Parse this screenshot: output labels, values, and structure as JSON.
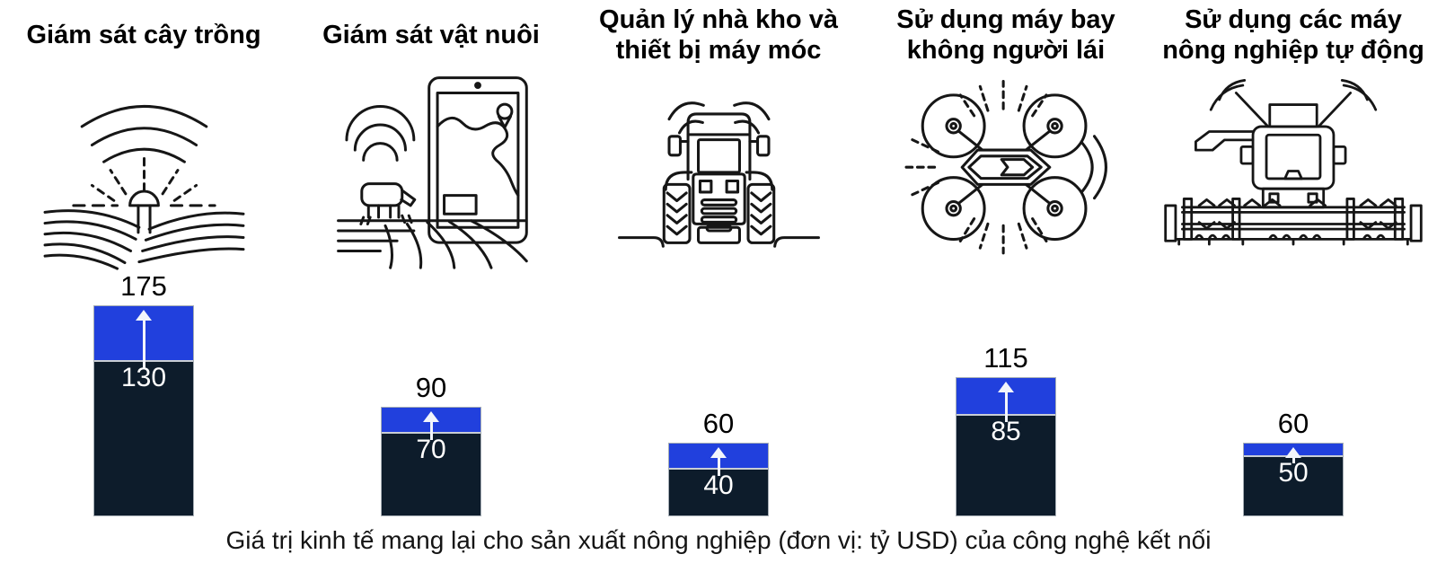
{
  "chart_data": {
    "type": "bar",
    "stacked": true,
    "orientation": "vertical",
    "categories": [
      "Giám sát cây trồng",
      "Giám sát vật nuôi",
      "Quản lý nhà kho và thiết bị máy móc",
      "Sử dụng máy bay không người lái",
      "Sử dụng các máy nông nghiệp tự động"
    ],
    "icons": [
      "crop-field-sensor-icon",
      "tablet-livestock-icon",
      "tractor-icon",
      "drone-icon",
      "combine-harvester-icon"
    ],
    "base_values": [
      130,
      70,
      40,
      85,
      50
    ],
    "totals": [
      175,
      90,
      60,
      115,
      60
    ],
    "series": [
      {
        "name": "base",
        "color": "#0d1c2b",
        "values": [
          130,
          70,
          40,
          85,
          50
        ]
      },
      {
        "name": "increase",
        "color": "#2140dd",
        "values": [
          45,
          20,
          20,
          30,
          10
        ]
      }
    ],
    "unit": "tỷ USD",
    "caption": "Giá trị kinh tế mang lại cho sản xuất nông nghiệp (đơn vị: tỷ USD) của công nghệ kết nối",
    "ylim": [
      0,
      175
    ],
    "legend": "none",
    "grid": false,
    "colors": {
      "base_segment": "#0d1c2b",
      "increase_segment": "#2140dd",
      "divider": "#c9ced4",
      "arrow": "#f2f5fb",
      "bar_border": "#a6aeb5",
      "total_label": "#000000",
      "base_label": "#ffffff"
    }
  }
}
